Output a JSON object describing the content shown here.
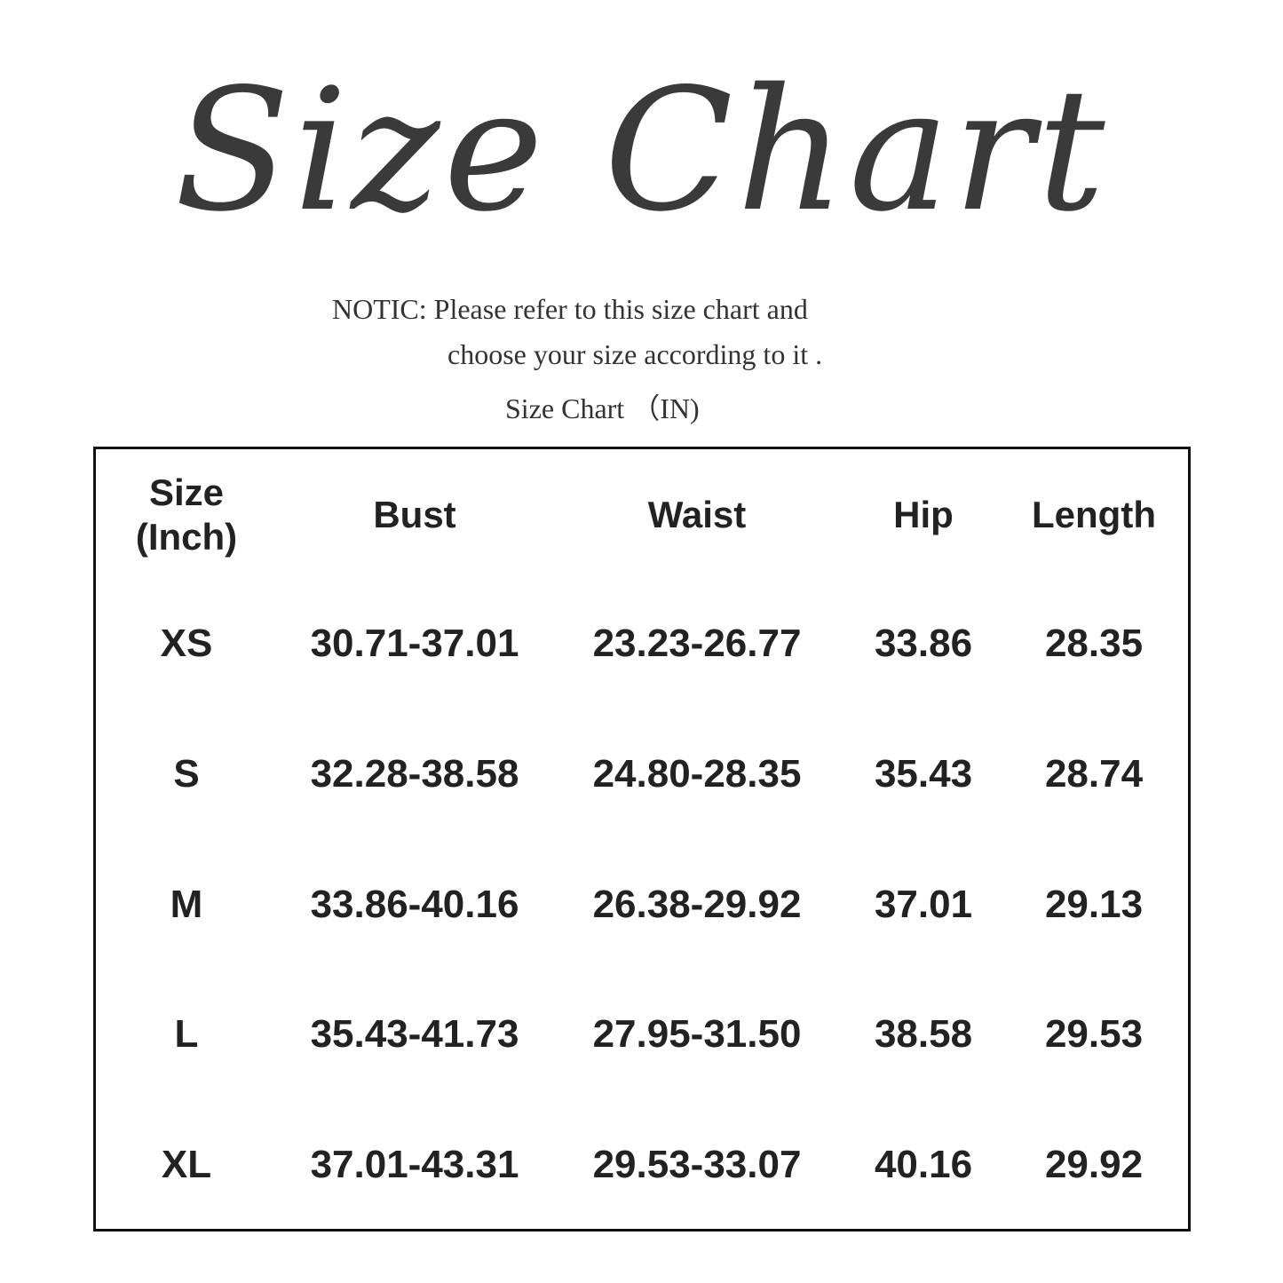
{
  "title": "Size Chart",
  "notice_line1": "NOTIC: Please refer to this size chart and",
  "notice_line2": "choose your size according to it .",
  "unit_caption": "Size Chart （IN)",
  "table": {
    "headers": [
      "Size\n(Inch)",
      "Bust",
      "Waist",
      "Hip",
      "Length"
    ],
    "rows": [
      [
        "XS",
        "30.71-37.01",
        "23.23-26.77",
        "33.86",
        "28.35"
      ],
      [
        "S",
        "32.28-38.58",
        "24.80-28.35",
        "35.43",
        "28.74"
      ],
      [
        "M",
        "33.86-40.16",
        "26.38-29.92",
        "37.01",
        "29.13"
      ],
      [
        "L",
        "35.43-41.73",
        "27.95-31.50",
        "38.58",
        "29.53"
      ],
      [
        "XL",
        "37.01-43.31",
        "29.53-33.07",
        "40.16",
        "29.92"
      ]
    ]
  }
}
